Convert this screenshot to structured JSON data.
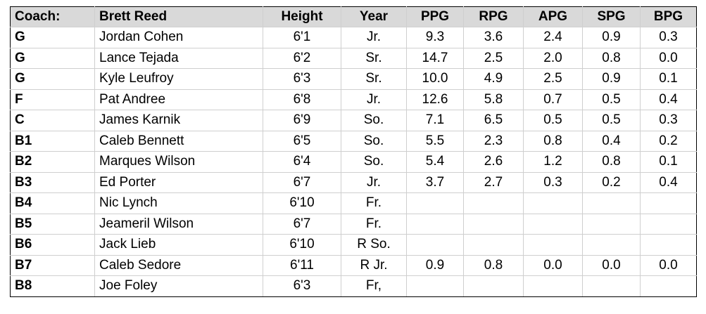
{
  "header": {
    "coach_label": "Coach:",
    "coach_name": "Brett Reed",
    "columns": [
      "Height",
      "Year",
      "PPG",
      "RPG",
      "APG",
      "SPG",
      "BPG"
    ]
  },
  "rows": [
    {
      "pos": "G",
      "name": "Jordan Cohen",
      "height": "6'1",
      "year": "Jr.",
      "ppg": "9.3",
      "rpg": "3.6",
      "apg": "2.4",
      "spg": "0.9",
      "bpg": "0.3"
    },
    {
      "pos": "G",
      "name": "Lance Tejada",
      "height": "6'2",
      "year": "Sr.",
      "ppg": "14.7",
      "rpg": "2.5",
      "apg": "2.0",
      "spg": "0.8",
      "bpg": "0.0"
    },
    {
      "pos": "G",
      "name": "Kyle Leufroy",
      "height": "6'3",
      "year": "Sr.",
      "ppg": "10.0",
      "rpg": "4.9",
      "apg": "2.5",
      "spg": "0.9",
      "bpg": "0.1"
    },
    {
      "pos": "F",
      "name": "Pat Andree",
      "height": "6'8",
      "year": "Jr.",
      "ppg": "12.6",
      "rpg": "5.8",
      "apg": "0.7",
      "spg": "0.5",
      "bpg": "0.4"
    },
    {
      "pos": "C",
      "name": "James Karnik",
      "height": "6'9",
      "year": "So.",
      "ppg": "7.1",
      "rpg": "6.5",
      "apg": "0.5",
      "spg": "0.5",
      "bpg": "0.3"
    },
    {
      "pos": "B1",
      "name": "Caleb Bennett",
      "height": "6'5",
      "year": "So.",
      "ppg": "5.5",
      "rpg": "2.3",
      "apg": "0.8",
      "spg": "0.4",
      "bpg": "0.2"
    },
    {
      "pos": "B2",
      "name": "Marques Wilson",
      "height": "6'4",
      "year": "So.",
      "ppg": "5.4",
      "rpg": "2.6",
      "apg": "1.2",
      "spg": "0.8",
      "bpg": "0.1"
    },
    {
      "pos": "B3",
      "name": "Ed Porter",
      "height": "6'7",
      "year": "Jr.",
      "ppg": "3.7",
      "rpg": "2.7",
      "apg": "0.3",
      "spg": "0.2",
      "bpg": "0.4"
    },
    {
      "pos": "B4",
      "name": "Nic Lynch",
      "height": "6'10",
      "year": "Fr.",
      "ppg": "",
      "rpg": "",
      "apg": "",
      "spg": "",
      "bpg": ""
    },
    {
      "pos": "B5",
      "name": "Jeameril Wilson",
      "height": "6'7",
      "year": "Fr.",
      "ppg": "",
      "rpg": "",
      "apg": "",
      "spg": "",
      "bpg": ""
    },
    {
      "pos": "B6",
      "name": "Jack Lieb",
      "height": "6'10",
      "year": "R So.",
      "ppg": "",
      "rpg": "",
      "apg": "",
      "spg": "",
      "bpg": ""
    },
    {
      "pos": "B7",
      "name": "Caleb Sedore",
      "height": "6'11",
      "year": "R Jr.",
      "ppg": "0.9",
      "rpg": "0.8",
      "apg": "0.0",
      "spg": "0.0",
      "bpg": "0.0"
    },
    {
      "pos": "B8",
      "name": "Joe Foley",
      "height": "6'3",
      "year": "Fr,",
      "ppg": "",
      "rpg": "",
      "apg": "",
      "spg": "",
      "bpg": ""
    }
  ]
}
